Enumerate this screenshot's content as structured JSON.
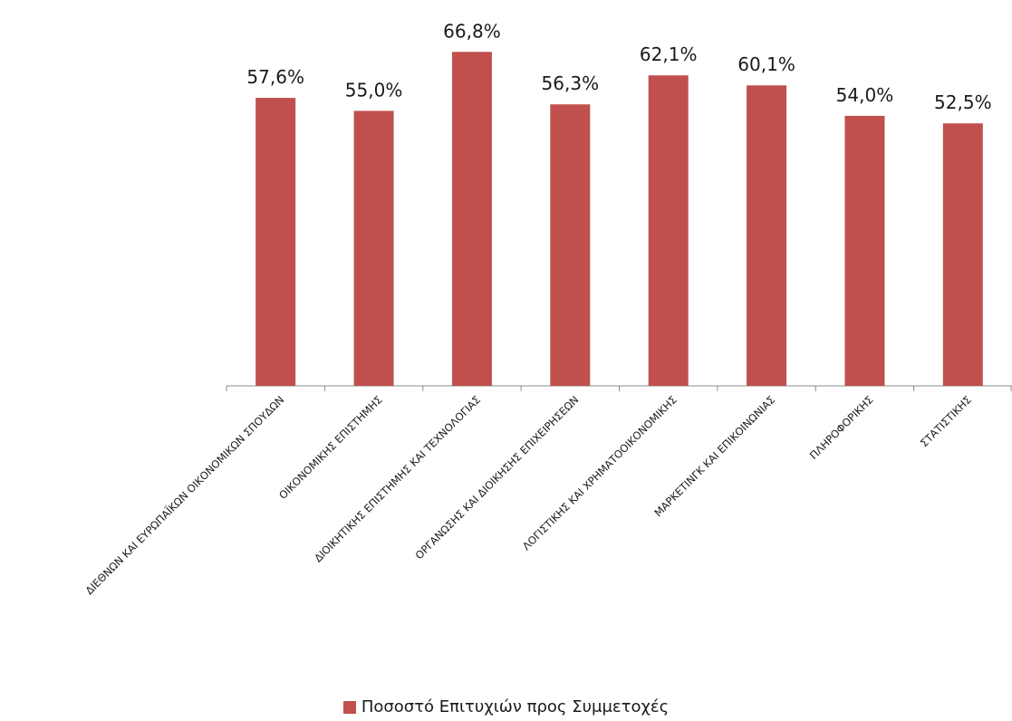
{
  "chart_data": {
    "type": "bar",
    "categories": [
      "ΔΙΕΘΝΩΝ ΚΑΙ ΕΥΡΩΠΑΪΚΩΝ ΟΙΚΟΝΟΜΙΚΩΝ ΣΠΟΥΔΩΝ",
      "ΟΙΚΟΝΟΜΙΚΗΣ ΕΠΙΣΤΗΜΗΣ",
      "ΔΙΟΙΚΗΤΙΚΗΣ ΕΠΙΣΤΗΜΗΣ ΚΑΙ ΤΕΧΝΟΛΟΓΙΑΣ",
      "ΟΡΓΑΝΩΣΗΣ ΚΑΙ ΔΙΟΙΚΗΣΗΣ ΕΠΙΧΕΙΡΗΣΕΩΝ",
      "ΛΟΓΙΣΤΙΚΗΣ ΚΑΙ ΧΡΗΜΑΤΟΟΙΚΟΝΟΜΙΚΗΣ",
      "ΜΑΡΚΕΤΙΝΓΚ ΚΑΙ ΕΠΙΚΟΙΝΩΝΙΑΣ",
      "ΠΛΗΡΟΦΟΡΙΚΗΣ",
      "ΣΤΑΤΙΣΤΙΚΗΣ"
    ],
    "series": [
      {
        "name": "Ποσοστό Επιτυχιών προς Συμμετοχές",
        "values": [
          57.6,
          55.0,
          66.8,
          56.3,
          62.1,
          60.1,
          54.0,
          52.5
        ],
        "labels": [
          "57,6%",
          "55,0%",
          "66,8%",
          "56,3%",
          "62,1%",
          "60,1%",
          "54,0%",
          "52,5%"
        ],
        "color": "#C0504D"
      }
    ],
    "ylim": [
      0,
      70
    ],
    "grid": false,
    "legend_position": "bottom",
    "axis_color": "#8c8c8c"
  }
}
